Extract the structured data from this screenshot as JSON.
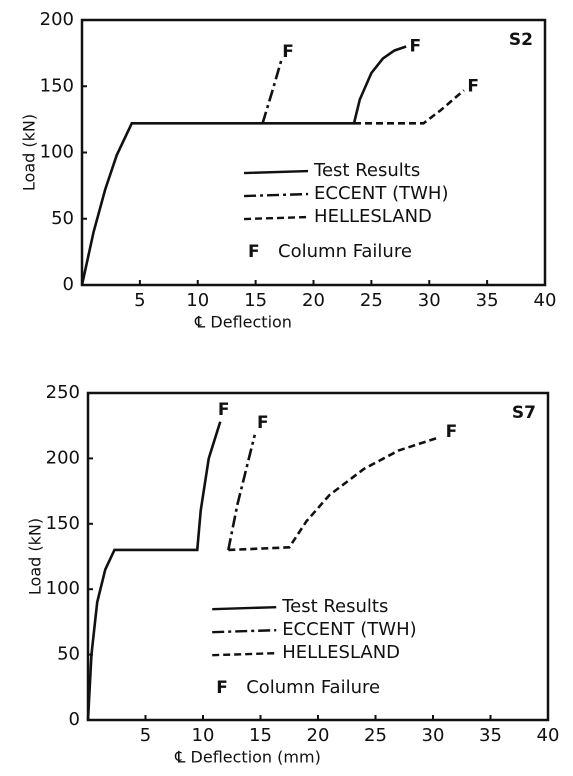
{
  "chart_data": [
    {
      "type": "line",
      "label": "S2",
      "xlabel": "℄ Deflection",
      "ylabel": "Load (kN)",
      "xlim": [
        0,
        40
      ],
      "ylim": [
        0,
        200
      ],
      "xticks": [
        5,
        10,
        15,
        20,
        25,
        30,
        35,
        40
      ],
      "yticks": [
        0,
        50,
        100,
        150,
        200
      ],
      "legend": "lower right",
      "failure_marker": "F",
      "failure_label": "Column Failure",
      "series": [
        {
          "name": "Test Results",
          "color": "#111111",
          "style": "solid",
          "x": [
            0,
            1,
            2,
            3,
            4.3,
            23.5,
            24,
            25,
            26,
            27,
            28
          ],
          "values": [
            0,
            40,
            72,
            98,
            122,
            122,
            140,
            160,
            171,
            177,
            180
          ]
        },
        {
          "name": "ECCENT (TWH)",
          "color": "#111111",
          "style": "dashdot",
          "x": [
            15.6,
            16.5,
            17.3
          ],
          "values": [
            122,
            148,
            172
          ]
        },
        {
          "name": "HELLESLAND",
          "color": "#111111",
          "style": "dashed",
          "x": [
            23.5,
            29.5,
            31,
            33
          ],
          "values": [
            122,
            122,
            132,
            147
          ]
        }
      ],
      "failures": [
        {
          "text": "F",
          "x": 17.8,
          "y": 176
        },
        {
          "text": "F",
          "x": 28.8,
          "y": 180
        },
        {
          "text": "F",
          "x": 33.8,
          "y": 150
        }
      ]
    },
    {
      "type": "line",
      "label": "S7",
      "xlabel": "℄ Deflection (mm)",
      "ylabel": "Load (kN)",
      "xlim": [
        0,
        40
      ],
      "ylim": [
        0,
        250
      ],
      "xticks": [
        5,
        10,
        15,
        20,
        25,
        30,
        35,
        40
      ],
      "yticks": [
        0,
        50,
        100,
        150,
        200,
        250
      ],
      "legend": "lower right",
      "failure_marker": "F",
      "failure_label": "Column Failure",
      "series": [
        {
          "name": "Test Results",
          "color": "#111111",
          "style": "solid",
          "x": [
            0,
            0.3,
            0.8,
            1.5,
            2.3,
            9.5,
            9.8,
            10.5,
            11.5
          ],
          "values": [
            0,
            50,
            90,
            115,
            130,
            130,
            160,
            200,
            228
          ]
        },
        {
          "name": "ECCENT (TWH)",
          "color": "#111111",
          "style": "dashdot",
          "x": [
            12.2,
            13,
            14.5
          ],
          "values": [
            130,
            165,
            218
          ]
        },
        {
          "name": "HELLESLAND",
          "color": "#111111",
          "style": "dashed",
          "x": [
            12.2,
            17.5,
            19,
            21,
            24,
            27,
            30.5
          ],
          "values": [
            130,
            132,
            152,
            172,
            192,
            206,
            216
          ]
        }
      ],
      "failures": [
        {
          "text": "F",
          "x": 11.8,
          "y": 237
        },
        {
          "text": "F",
          "x": 15.2,
          "y": 227
        },
        {
          "text": "F",
          "x": 31.6,
          "y": 220
        }
      ]
    }
  ]
}
